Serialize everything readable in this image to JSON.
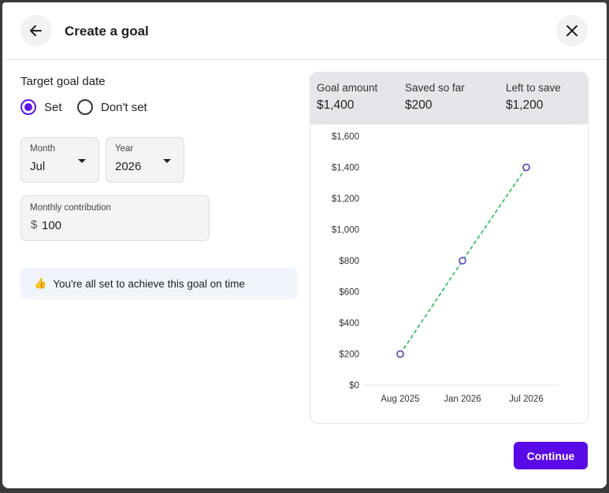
{
  "header": {
    "title": "Create a goal",
    "back_icon": "arrow-left-icon",
    "close_icon": "close-icon"
  },
  "target_date": {
    "label": "Target goal date",
    "options": [
      {
        "label": "Set",
        "selected": true
      },
      {
        "label": "Don't set",
        "selected": false
      }
    ]
  },
  "month": {
    "label": "Month",
    "value": "Jul"
  },
  "year": {
    "label": "Year",
    "value": "2026"
  },
  "contribution": {
    "label": "Monthly contribution",
    "currency": "$",
    "value": "100"
  },
  "status": {
    "emoji": "👍",
    "text": "You're all set to achieve this goal on time"
  },
  "stats": [
    {
      "label": "Goal amount",
      "value": "$1,400"
    },
    {
      "label": "Saved so far",
      "value": "$200"
    },
    {
      "label": "Left to save",
      "value": "$1,200"
    }
  ],
  "chart_data": {
    "type": "line",
    "x": [
      "Aug 2025",
      "Jan 2026",
      "Jul 2026"
    ],
    "series": [
      {
        "values": [
          200,
          800,
          1400
        ]
      }
    ],
    "y_ticks": [
      "$0",
      "$200",
      "$400",
      "$600",
      "$800",
      "$1,000",
      "$1,200",
      "$1,400",
      "$1,600"
    ],
    "ylim": [
      0,
      1600
    ],
    "line_color": "#3fbf6f",
    "marker_color": "#6a4fc2",
    "line_style": "dashed"
  },
  "footer": {
    "continue_label": "Continue"
  },
  "colors": {
    "accent": "#5a0ae6"
  }
}
